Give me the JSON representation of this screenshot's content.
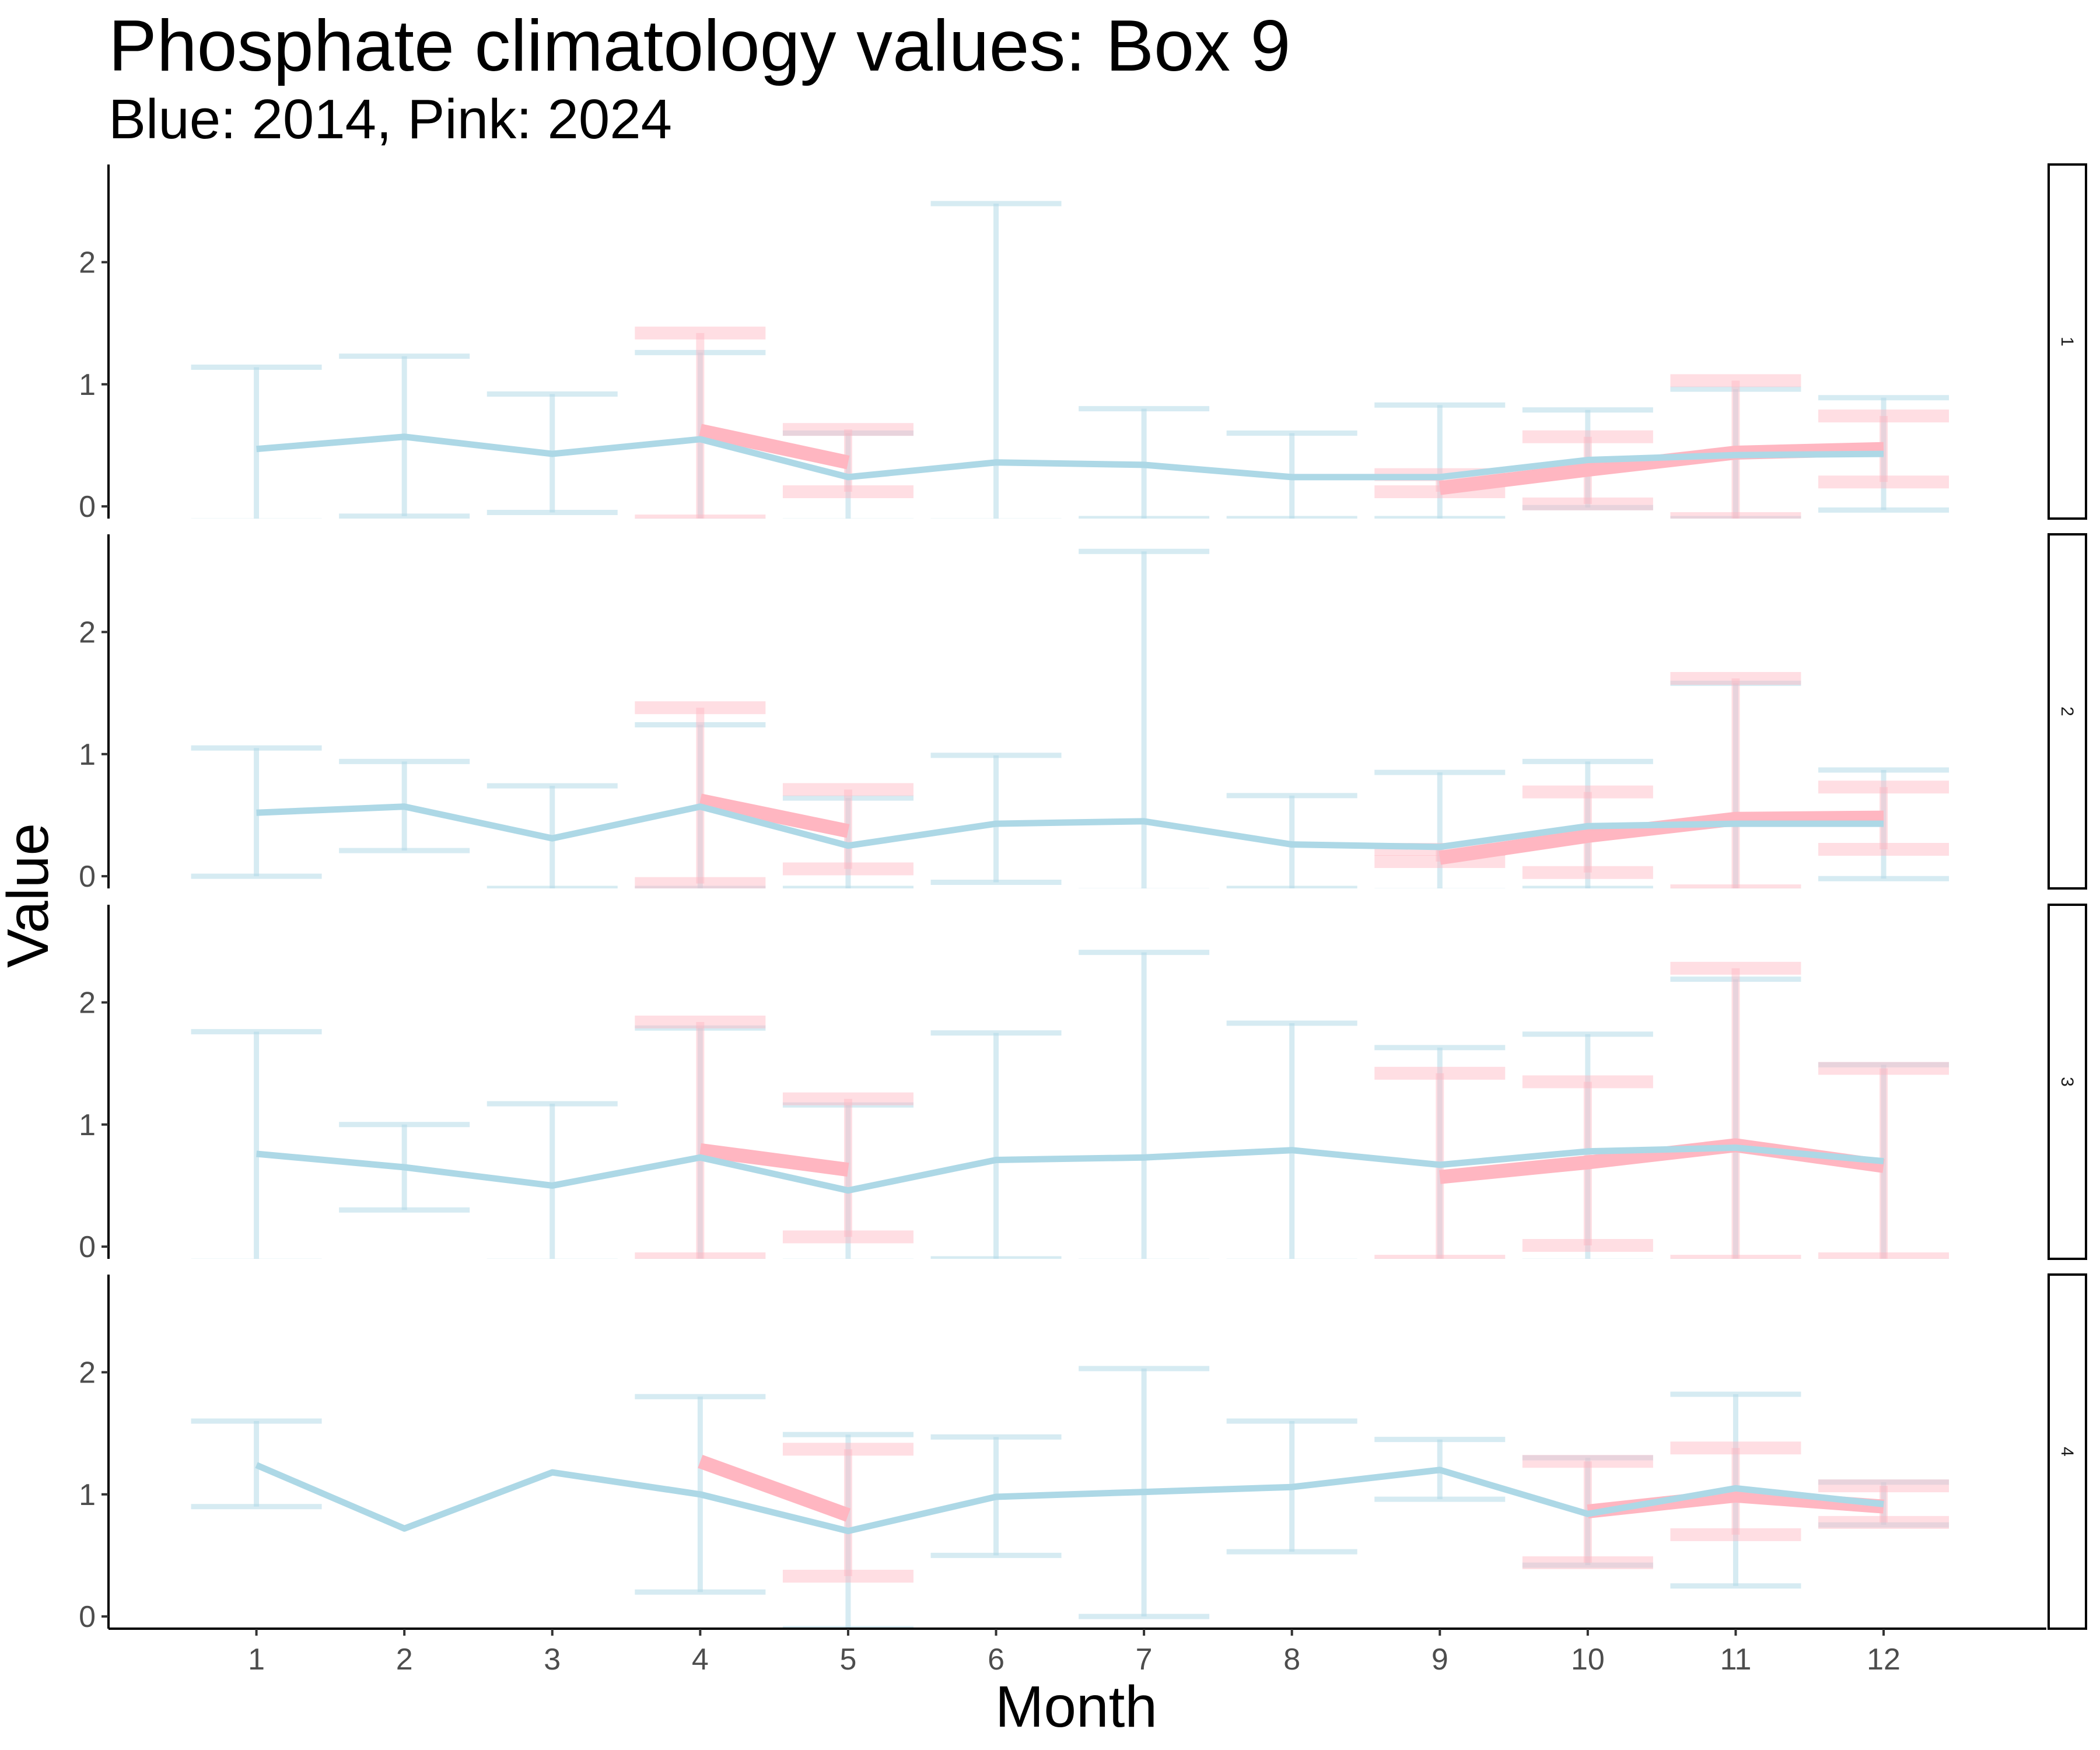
{
  "chart_data": {
    "type": "line",
    "title": "Phosphate climatology values: Box 9",
    "subtitle": "Blue: 2014, Pink: 2024",
    "xlabel": "Month",
    "ylabel": "Value",
    "x_ticks": [
      1,
      2,
      3,
      4,
      5,
      6,
      7,
      8,
      9,
      10,
      11,
      12
    ],
    "y_ticks": [
      0,
      1,
      2
    ],
    "ylim": [
      -0.1,
      2.8
    ],
    "xlim": [
      0,
      13.1
    ],
    "grid": false,
    "facet_labels": [
      "1",
      "2",
      "3",
      "4"
    ],
    "series_colors": {
      "blue": "#ADD8E6",
      "pink": "#FFB6C1"
    },
    "panels": [
      {
        "label": "1",
        "series": [
          {
            "color_key": "blue",
            "x": [
              1,
              2,
              3,
              4,
              5,
              6,
              7,
              8,
              9,
              10,
              11,
              12
            ],
            "y": [
              0.47,
              0.57,
              0.43,
              0.55,
              0.24,
              0.36,
              0.34,
              0.24,
              0.24,
              0.38,
              0.42,
              0.43
            ],
            "lower": [
              -0.12,
              -0.08,
              -0.05,
              -0.12,
              -0.12,
              -0.12,
              -0.1,
              -0.1,
              -0.1,
              -0.01,
              -0.1,
              -0.03
            ],
            "upper": [
              1.14,
              1.23,
              0.92,
              1.26,
              0.6,
              2.48,
              0.8,
              0.6,
              0.83,
              0.79,
              0.96,
              0.89
            ]
          },
          {
            "color_key": "pink",
            "x": [
              4,
              5,
              9,
              10,
              11,
              12
            ],
            "y": [
              0.62,
              0.36,
              0.15,
              0.3,
              0.44,
              0.47
            ],
            "lower": [
              -0.12,
              0.12,
              0.12,
              0.02,
              -0.1,
              0.2
            ],
            "upper": [
              1.42,
              0.63,
              0.26,
              0.57,
              1.03,
              0.74
            ]
          }
        ]
      },
      {
        "label": "2",
        "series": [
          {
            "color_key": "blue",
            "x": [
              1,
              2,
              3,
              4,
              5,
              6,
              7,
              8,
              9,
              10,
              11,
              12
            ],
            "y": [
              0.52,
              0.57,
              0.31,
              0.57,
              0.25,
              0.43,
              0.45,
              0.26,
              0.24,
              0.41,
              0.43,
              0.43
            ],
            "lower": [
              0.0,
              0.21,
              -0.1,
              -0.1,
              -0.1,
              -0.05,
              -0.12,
              -0.1,
              -0.12,
              -0.1,
              -0.12,
              -0.02
            ],
            "upper": [
              1.05,
              0.94,
              0.74,
              1.24,
              0.64,
              0.99,
              2.66,
              0.66,
              0.85,
              0.94,
              1.58,
              0.87
            ]
          },
          {
            "color_key": "pink",
            "x": [
              4,
              5,
              9,
              10,
              11,
              12
            ],
            "y": [
              0.62,
              0.37,
              0.15,
              0.33,
              0.47,
              0.48
            ],
            "lower": [
              -0.06,
              0.06,
              0.12,
              0.03,
              -0.12,
              0.22
            ],
            "upper": [
              1.38,
              0.71,
              0.22,
              0.69,
              1.62,
              0.73
            ]
          }
        ]
      },
      {
        "label": "3",
        "series": [
          {
            "color_key": "blue",
            "x": [
              1,
              2,
              3,
              4,
              5,
              6,
              7,
              8,
              9,
              10,
              11,
              12
            ],
            "y": [
              0.76,
              0.65,
              0.5,
              0.73,
              0.46,
              0.71,
              0.73,
              0.79,
              0.67,
              0.78,
              0.81,
              0.7
            ],
            "lower": [
              -0.12,
              0.3,
              -0.12,
              -0.12,
              -0.12,
              -0.1,
              -0.12,
              -0.12,
              -0.12,
              -0.12,
              -0.12,
              -0.12
            ],
            "upper": [
              1.76,
              1.0,
              1.17,
              1.79,
              1.16,
              1.75,
              2.41,
              1.83,
              1.63,
              1.74,
              2.19,
              1.49
            ]
          },
          {
            "color_key": "pink",
            "x": [
              4,
              5,
              9,
              10,
              11,
              12
            ],
            "y": [
              0.79,
              0.63,
              0.57,
              0.69,
              0.83,
              0.66
            ],
            "lower": [
              -0.1,
              0.08,
              -0.12,
              0.01,
              -0.12,
              -0.1
            ],
            "upper": [
              1.84,
              1.21,
              1.42,
              1.35,
              2.28,
              1.46
            ]
          }
        ]
      },
      {
        "label": "4",
        "series": [
          {
            "color_key": "blue",
            "x": [
              1,
              2,
              3,
              4,
              5,
              6,
              7,
              8,
              9,
              10,
              11,
              12
            ],
            "y": [
              1.24,
              0.72,
              1.18,
              1.0,
              0.7,
              0.98,
              1.02,
              1.06,
              1.2,
              0.84,
              1.05,
              0.92
            ],
            "lower": [
              0.9,
              0.72,
              1.18,
              0.2,
              -0.1,
              0.5,
              0.0,
              0.53,
              0.96,
              0.42,
              0.25,
              0.75
            ],
            "upper": [
              1.6,
              0.72,
              1.18,
              1.8,
              1.49,
              1.47,
              2.03,
              1.6,
              1.45,
              1.3,
              1.82,
              1.1
            ]
          },
          {
            "color_key": "pink",
            "x": [
              4,
              5,
              10,
              11,
              12
            ],
            "y": [
              1.27,
              0.83,
              0.86,
              0.99,
              0.9
            ],
            "lower": [
              1.27,
              0.33,
              0.44,
              0.67,
              0.77
            ],
            "upper": [
              1.27,
              1.37,
              1.27,
              1.38,
              1.07
            ]
          }
        ]
      }
    ]
  }
}
